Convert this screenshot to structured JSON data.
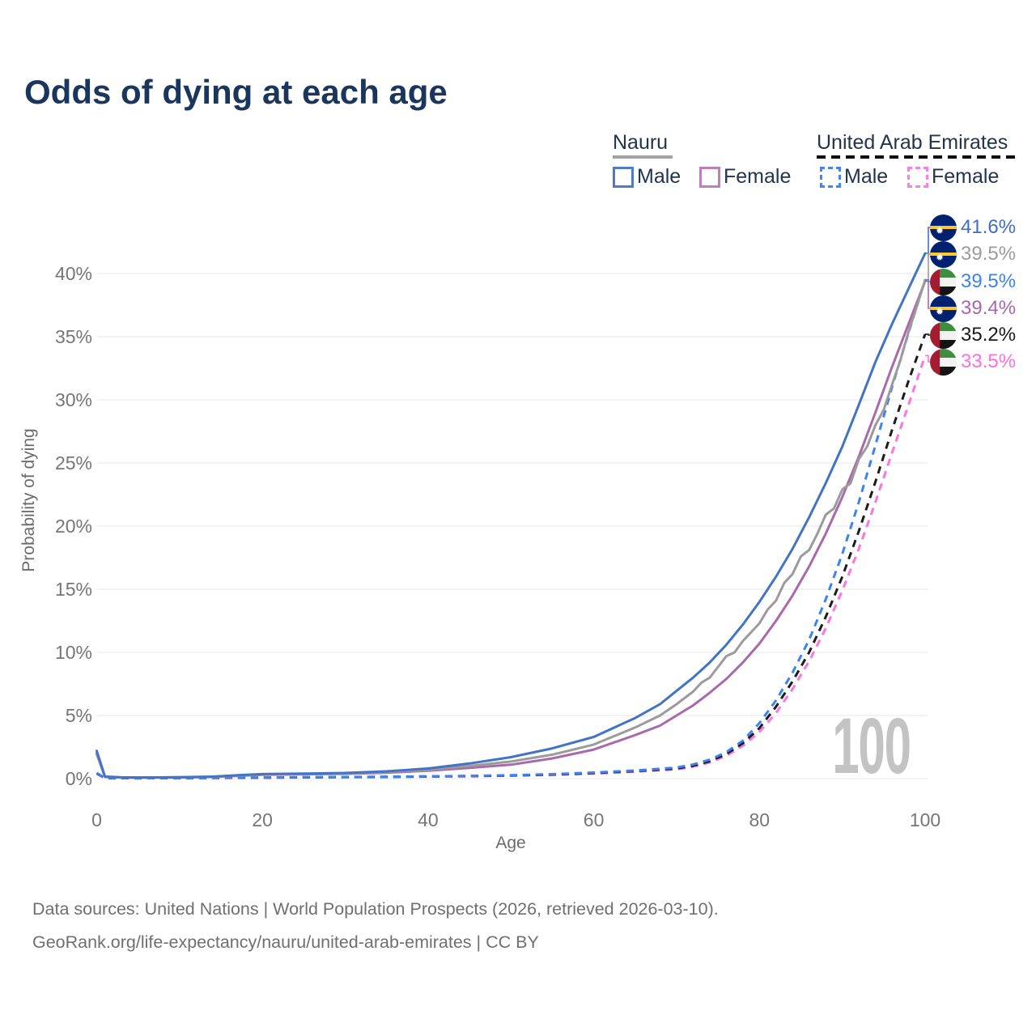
{
  "title": "Odds of dying at each age",
  "legend": {
    "groups": [
      {
        "title": "Nauru",
        "line_style": "solid",
        "line_color": "#a3a3a3",
        "items": [
          {
            "label": "Male",
            "color": "#4f7cc2",
            "dashed": false
          },
          {
            "label": "Female",
            "color": "#bd7eba",
            "dashed": false
          }
        ]
      },
      {
        "title": "United Arab Emirates",
        "line_style": "dashed",
        "line_color": "#0d0d0d",
        "items": [
          {
            "label": "Male",
            "color": "#4285f4",
            "dashed": true
          },
          {
            "label": "Female",
            "color": "#f97ee6",
            "dashed": true
          }
        ]
      }
    ]
  },
  "chart_data": {
    "type": "line",
    "title": "Odds of dying at each age",
    "xlabel": "Age",
    "ylabel": "Probability of dying",
    "xlim": [
      0,
      100
    ],
    "ylim": [
      0,
      43
    ],
    "x_ticks": [
      0,
      20,
      40,
      60,
      80,
      100
    ],
    "y_tick_values": [
      0,
      5,
      10,
      15,
      20,
      25,
      30,
      35,
      40
    ],
    "y_tick_labels": [
      "0%",
      "5%",
      "10%",
      "15%",
      "20%",
      "25%",
      "30%",
      "35%",
      "40%"
    ],
    "grid": true,
    "legend_position": "top-right",
    "hover_age": "100",
    "series": [
      {
        "id": "uae-female",
        "name": "United Arab Emirates Female",
        "color": "#fb74e0",
        "dashed": true,
        "points": [
          [
            0,
            0.38
          ],
          [
            1,
            0.045
          ],
          [
            5,
            0.026
          ],
          [
            10,
            0.033
          ],
          [
            15,
            0.05
          ],
          [
            20,
            0.07
          ],
          [
            25,
            0.09
          ],
          [
            30,
            0.11
          ],
          [
            35,
            0.13
          ],
          [
            40,
            0.16
          ],
          [
            45,
            0.19
          ],
          [
            50,
            0.23
          ],
          [
            55,
            0.3
          ],
          [
            60,
            0.4
          ],
          [
            65,
            0.55
          ],
          [
            68,
            0.66
          ],
          [
            70,
            0.74
          ],
          [
            72,
            0.95
          ],
          [
            74,
            1.28
          ],
          [
            76,
            1.8
          ],
          [
            78,
            2.6
          ],
          [
            80,
            3.7
          ],
          [
            82,
            5.2
          ],
          [
            84,
            7.1
          ],
          [
            86,
            9.3
          ],
          [
            88,
            11.9
          ],
          [
            90,
            14.9
          ],
          [
            92,
            18.2
          ],
          [
            94,
            21.9
          ],
          [
            96,
            25.8
          ],
          [
            98,
            29.6
          ],
          [
            100,
            33.5
          ]
        ]
      },
      {
        "id": "uae-both",
        "name": "United Arab Emirates Both sexes",
        "color": "#1c1c1c",
        "dashed": true,
        "points": [
          [
            0,
            0.42
          ],
          [
            1,
            0.048
          ],
          [
            5,
            0.028
          ],
          [
            10,
            0.036
          ],
          [
            15,
            0.055
          ],
          [
            20,
            0.08
          ],
          [
            25,
            0.1
          ],
          [
            30,
            0.12
          ],
          [
            35,
            0.14
          ],
          [
            40,
            0.17
          ],
          [
            45,
            0.2
          ],
          [
            50,
            0.25
          ],
          [
            55,
            0.32
          ],
          [
            60,
            0.44
          ],
          [
            65,
            0.6
          ],
          [
            68,
            0.72
          ],
          [
            70,
            0.8
          ],
          [
            72,
            1.02
          ],
          [
            74,
            1.38
          ],
          [
            76,
            1.95
          ],
          [
            78,
            2.8
          ],
          [
            80,
            4.0
          ],
          [
            82,
            5.7
          ],
          [
            84,
            7.7
          ],
          [
            86,
            10.0
          ],
          [
            88,
            12.8
          ],
          [
            90,
            16.0
          ],
          [
            92,
            19.6
          ],
          [
            94,
            23.5
          ],
          [
            96,
            27.6
          ],
          [
            98,
            31.5
          ],
          [
            100,
            35.2
          ]
        ]
      },
      {
        "id": "uae-male",
        "name": "United Arab Emirates Male",
        "color": "#3b82f2",
        "dashed": true,
        "points": [
          [
            0,
            0.45
          ],
          [
            1,
            0.05
          ],
          [
            5,
            0.03
          ],
          [
            10,
            0.04
          ],
          [
            15,
            0.06
          ],
          [
            20,
            0.09
          ],
          [
            25,
            0.11
          ],
          [
            30,
            0.13
          ],
          [
            35,
            0.15
          ],
          [
            40,
            0.18
          ],
          [
            45,
            0.22
          ],
          [
            50,
            0.27
          ],
          [
            55,
            0.35
          ],
          [
            60,
            0.48
          ],
          [
            65,
            0.65
          ],
          [
            68,
            0.78
          ],
          [
            70,
            0.88
          ],
          [
            72,
            1.12
          ],
          [
            74,
            1.5
          ],
          [
            76,
            2.1
          ],
          [
            78,
            3.0
          ],
          [
            80,
            4.4
          ],
          [
            82,
            6.2
          ],
          [
            84,
            8.4
          ],
          [
            86,
            11.0
          ],
          [
            88,
            14.2
          ],
          [
            90,
            17.8
          ],
          [
            92,
            21.9
          ],
          [
            94,
            26.4
          ],
          [
            96,
            31.0
          ],
          [
            98,
            35.3
          ],
          [
            100,
            39.5
          ]
        ]
      },
      {
        "id": "nauru-female",
        "name": "Nauru Female",
        "color": "#a96aab",
        "dashed": false,
        "points": [
          [
            0,
            1.95
          ],
          [
            1,
            0.14
          ],
          [
            3,
            0.09
          ],
          [
            5,
            0.08
          ],
          [
            10,
            0.09
          ],
          [
            14,
            0.14
          ],
          [
            18,
            0.24
          ],
          [
            20,
            0.3
          ],
          [
            25,
            0.34
          ],
          [
            30,
            0.38
          ],
          [
            35,
            0.47
          ],
          [
            40,
            0.62
          ],
          [
            45,
            0.85
          ],
          [
            50,
            1.1
          ],
          [
            55,
            1.6
          ],
          [
            60,
            2.3
          ],
          [
            65,
            3.45
          ],
          [
            68,
            4.2
          ],
          [
            70,
            5.0
          ],
          [
            72,
            5.8
          ],
          [
            74,
            6.8
          ],
          [
            76,
            7.9
          ],
          [
            78,
            9.2
          ],
          [
            80,
            10.7
          ],
          [
            82,
            12.5
          ],
          [
            84,
            14.5
          ],
          [
            86,
            16.8
          ],
          [
            88,
            19.4
          ],
          [
            90,
            22.3
          ],
          [
            92,
            25.5
          ],
          [
            94,
            29.0
          ],
          [
            96,
            32.6
          ],
          [
            98,
            36.0
          ],
          [
            100,
            39.4
          ]
        ]
      },
      {
        "id": "nauru-both",
        "name": "Nauru Both sexes",
        "color": "#9b9b9b",
        "dashed": false,
        "points": [
          [
            0,
            2.05
          ],
          [
            1,
            0.15
          ],
          [
            3,
            0.09
          ],
          [
            5,
            0.08
          ],
          [
            10,
            0.1
          ],
          [
            14,
            0.15
          ],
          [
            18,
            0.27
          ],
          [
            20,
            0.33
          ],
          [
            25,
            0.37
          ],
          [
            30,
            0.41
          ],
          [
            35,
            0.52
          ],
          [
            40,
            0.7
          ],
          [
            45,
            1.0
          ],
          [
            50,
            1.35
          ],
          [
            55,
            1.9
          ],
          [
            60,
            2.7
          ],
          [
            65,
            4.05
          ],
          [
            68,
            5.0
          ],
          [
            70,
            5.9
          ],
          [
            72,
            6.9
          ],
          [
            73,
            7.6
          ],
          [
            74,
            8.0
          ],
          [
            76,
            9.7
          ],
          [
            77,
            10.0
          ],
          [
            78,
            10.9
          ],
          [
            80,
            12.3
          ],
          [
            81,
            13.4
          ],
          [
            82,
            14.1
          ],
          [
            83,
            15.5
          ],
          [
            84,
            16.2
          ],
          [
            85,
            17.6
          ],
          [
            86,
            18.1
          ],
          [
            87,
            19.4
          ],
          [
            88,
            20.9
          ],
          [
            89,
            21.4
          ],
          [
            90,
            22.9
          ],
          [
            91,
            23.4
          ],
          [
            92,
            25.3
          ],
          [
            93,
            26.3
          ],
          [
            94,
            28.0
          ],
          [
            95,
            29.2
          ],
          [
            96,
            31.2
          ],
          [
            97,
            33.1
          ],
          [
            98,
            35.4
          ],
          [
            99,
            37.4
          ],
          [
            100,
            39.5
          ]
        ]
      },
      {
        "id": "nauru-male",
        "name": "Nauru Male",
        "color": "#4273c4",
        "dashed": false,
        "points": [
          [
            0,
            2.2
          ],
          [
            1,
            0.16
          ],
          [
            3,
            0.1
          ],
          [
            5,
            0.09
          ],
          [
            10,
            0.11
          ],
          [
            14,
            0.16
          ],
          [
            18,
            0.3
          ],
          [
            20,
            0.36
          ],
          [
            25,
            0.4
          ],
          [
            30,
            0.45
          ],
          [
            35,
            0.58
          ],
          [
            40,
            0.8
          ],
          [
            45,
            1.2
          ],
          [
            50,
            1.7
          ],
          [
            55,
            2.4
          ],
          [
            60,
            3.3
          ],
          [
            65,
            4.8
          ],
          [
            68,
            5.9
          ],
          [
            70,
            6.95
          ],
          [
            72,
            8.0
          ],
          [
            74,
            9.2
          ],
          [
            76,
            10.6
          ],
          [
            78,
            12.2
          ],
          [
            80,
            14.0
          ],
          [
            82,
            16.0
          ],
          [
            84,
            18.2
          ],
          [
            86,
            20.7
          ],
          [
            88,
            23.4
          ],
          [
            90,
            26.3
          ],
          [
            92,
            29.6
          ],
          [
            94,
            33.0
          ],
          [
            96,
            36.0
          ],
          [
            98,
            38.8
          ],
          [
            100,
            41.6
          ]
        ]
      }
    ],
    "end_labels": [
      {
        "series": "nauru-male",
        "flag": "nauru",
        "text": "41.6%",
        "color": "#3e6fbe"
      },
      {
        "series": "nauru-both",
        "flag": "nauru",
        "text": "39.5%",
        "color": "#9c9c9c"
      },
      {
        "series": "uae-male",
        "flag": "uae",
        "text": "39.5%",
        "color": "#3c82ef"
      },
      {
        "series": "nauru-female",
        "flag": "nauru",
        "text": "39.4%",
        "color": "#a768a9"
      },
      {
        "series": "uae-both",
        "flag": "uae",
        "text": "35.2%",
        "color": "#1a1a1a"
      },
      {
        "series": "uae-female",
        "flag": "uae",
        "text": "33.5%",
        "color": "#fb71dd"
      }
    ]
  },
  "footer": {
    "line1": "Data sources: United Nations | World Population Prospects (2026, retrieved 2026-03-10).",
    "line2": "GeoRank.org/life-expectancy/nauru/united-arab-emirates | CC BY"
  }
}
